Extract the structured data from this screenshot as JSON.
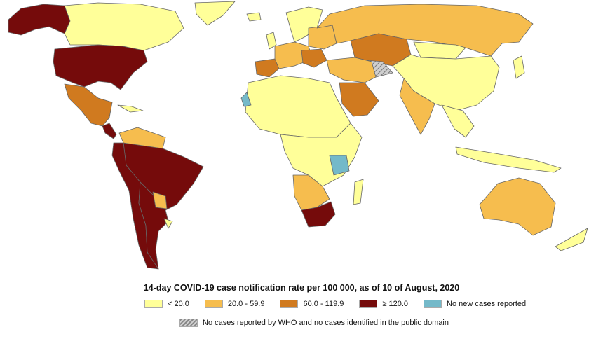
{
  "map": {
    "title": "14-day COVID-19 case notification rate per 100 000, as of 10 of August, 2020",
    "legend": [
      {
        "label": "< 20.0",
        "color": "#ffff99"
      },
      {
        "label": "20.0 - 59.9",
        "color": "#f6bd4e"
      },
      {
        "label": "60.0 - 119.9",
        "color": "#d07a1f"
      },
      {
        "label": "≥ 120.0",
        "color": "#750b0b"
      },
      {
        "label": "No new cases reported",
        "color": "#74b9c9"
      }
    ],
    "no_data_label": "No cases reported by WHO and no cases identified in the public domain",
    "regions": [
      {
        "name": "Canada",
        "class": "< 20.0"
      },
      {
        "name": "Alaska",
        "class": "≥ 120.0"
      },
      {
        "name": "United States",
        "class": "≥ 120.0"
      },
      {
        "name": "Mexico",
        "class": "60.0 - 119.9"
      },
      {
        "name": "Greenland",
        "class": "< 20.0"
      },
      {
        "name": "Brazil",
        "class": "≥ 120.0"
      },
      {
        "name": "Argentina",
        "class": "≥ 120.0"
      },
      {
        "name": "Russia",
        "class": "20.0 - 59.9"
      },
      {
        "name": "Kazakhstan",
        "class": "60.0 - 119.9"
      },
      {
        "name": "China",
        "class": "< 20.0"
      },
      {
        "name": "India",
        "class": "20.0 - 59.9"
      },
      {
        "name": "Saudi Arabia",
        "class": "60.0 - 119.9"
      },
      {
        "name": "South Africa",
        "class": "≥ 120.0"
      },
      {
        "name": "Tanzania",
        "class": "No new cases reported"
      },
      {
        "name": "Turkmenistan",
        "class": "No cases reported by WHO and no cases identified in the public domain"
      },
      {
        "name": "Australia",
        "class": "20.0 - 59.9"
      }
    ]
  }
}
